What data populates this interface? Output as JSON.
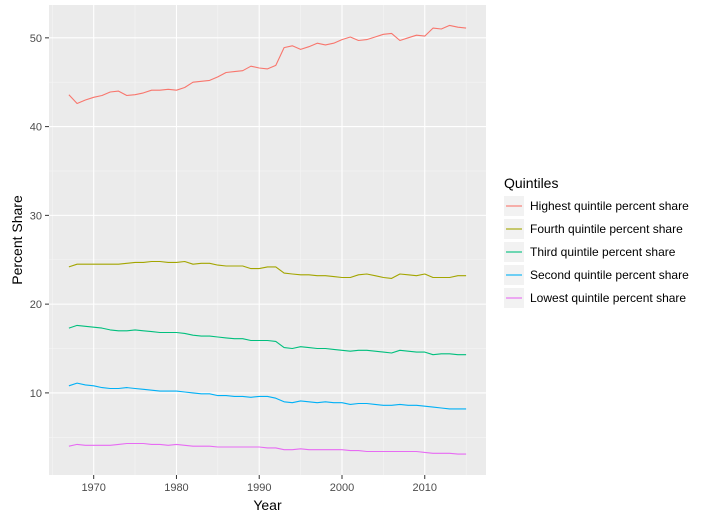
{
  "chart_data": {
    "type": "line",
    "xlabel": "Year",
    "ylabel": "Percent Share",
    "xlim": [
      1965.9,
      1916.1
    ],
    "ylim": [
      0.75,
      53.7
    ],
    "x_ticks": [
      1970,
      1980,
      1990,
      2000,
      2010
    ],
    "y_ticks": [
      10,
      20,
      30,
      40,
      50
    ],
    "grid": true,
    "legend_title": "Quintiles",
    "legend_position": "right",
    "x": [
      1967,
      1968,
      1969,
      1970,
      1971,
      1972,
      1973,
      1974,
      1975,
      1976,
      1977,
      1978,
      1979,
      1980,
      1981,
      1982,
      1983,
      1984,
      1985,
      1986,
      1987,
      1988,
      1989,
      1990,
      1991,
      1992,
      1993,
      1994,
      1995,
      1996,
      1997,
      1998,
      1999,
      2000,
      2001,
      2002,
      2003,
      2004,
      2005,
      2006,
      2007,
      2008,
      2009,
      2010,
      2011,
      2012,
      2013,
      2014,
      2015
    ],
    "series": [
      {
        "name": "Highest quintile percent share",
        "color": "#F8766D",
        "values": [
          43.6,
          42.6,
          43.0,
          43.3,
          43.5,
          43.9,
          44.0,
          43.5,
          43.6,
          43.8,
          44.1,
          44.1,
          44.2,
          44.1,
          44.4,
          45.0,
          45.1,
          45.2,
          45.6,
          46.1,
          46.2,
          46.3,
          46.8,
          46.6,
          46.5,
          46.9,
          48.9,
          49.1,
          48.7,
          49.0,
          49.4,
          49.2,
          49.4,
          49.8,
          50.1,
          49.7,
          49.8,
          50.1,
          50.4,
          50.5,
          49.7,
          50.0,
          50.3,
          50.2,
          51.1,
          51.0,
          51.4,
          51.2,
          51.1
        ]
      },
      {
        "name": "Fourth quintile percent share",
        "color": "#A3A500",
        "values": [
          24.2,
          24.5,
          24.5,
          24.5,
          24.5,
          24.5,
          24.5,
          24.6,
          24.7,
          24.7,
          24.8,
          24.8,
          24.7,
          24.7,
          24.8,
          24.5,
          24.6,
          24.6,
          24.4,
          24.3,
          24.3,
          24.3,
          24.0,
          24.0,
          24.2,
          24.2,
          23.5,
          23.4,
          23.3,
          23.3,
          23.2,
          23.2,
          23.1,
          23.0,
          23.0,
          23.3,
          23.4,
          23.2,
          23.0,
          22.9,
          23.4,
          23.3,
          23.2,
          23.4,
          23.0,
          23.0,
          23.0,
          23.2,
          23.2
        ]
      },
      {
        "name": "Third quintile percent share",
        "color": "#00BF7D",
        "values": [
          17.3,
          17.6,
          17.5,
          17.4,
          17.3,
          17.1,
          17.0,
          17.0,
          17.1,
          17.0,
          16.9,
          16.8,
          16.8,
          16.8,
          16.7,
          16.5,
          16.4,
          16.4,
          16.3,
          16.2,
          16.1,
          16.1,
          15.9,
          15.9,
          15.9,
          15.8,
          15.1,
          15.0,
          15.2,
          15.1,
          15.0,
          15.0,
          14.9,
          14.8,
          14.7,
          14.8,
          14.8,
          14.7,
          14.6,
          14.5,
          14.8,
          14.7,
          14.6,
          14.6,
          14.3,
          14.4,
          14.4,
          14.3,
          14.3
        ]
      },
      {
        "name": "Second quintile percent share",
        "color": "#00B0F6",
        "values": [
          10.8,
          11.1,
          10.9,
          10.8,
          10.6,
          10.5,
          10.5,
          10.6,
          10.5,
          10.4,
          10.3,
          10.2,
          10.2,
          10.2,
          10.1,
          10.0,
          9.9,
          9.9,
          9.7,
          9.7,
          9.6,
          9.6,
          9.5,
          9.6,
          9.6,
          9.4,
          9.0,
          8.9,
          9.1,
          9.0,
          8.9,
          9.0,
          8.9,
          8.9,
          8.7,
          8.8,
          8.8,
          8.7,
          8.6,
          8.6,
          8.7,
          8.6,
          8.6,
          8.5,
          8.4,
          8.3,
          8.2,
          8.2,
          8.2
        ]
      },
      {
        "name": "Lowest quintile percent share",
        "color": "#E76BF3",
        "values": [
          4.0,
          4.2,
          4.1,
          4.1,
          4.1,
          4.1,
          4.2,
          4.3,
          4.3,
          4.3,
          4.2,
          4.2,
          4.1,
          4.2,
          4.1,
          4.0,
          4.0,
          4.0,
          3.9,
          3.9,
          3.9,
          3.9,
          3.9,
          3.9,
          3.8,
          3.8,
          3.6,
          3.6,
          3.7,
          3.6,
          3.6,
          3.6,
          3.6,
          3.6,
          3.5,
          3.5,
          3.4,
          3.4,
          3.4,
          3.4,
          3.4,
          3.4,
          3.4,
          3.3,
          3.2,
          3.2,
          3.2,
          3.1,
          3.1
        ]
      }
    ]
  }
}
